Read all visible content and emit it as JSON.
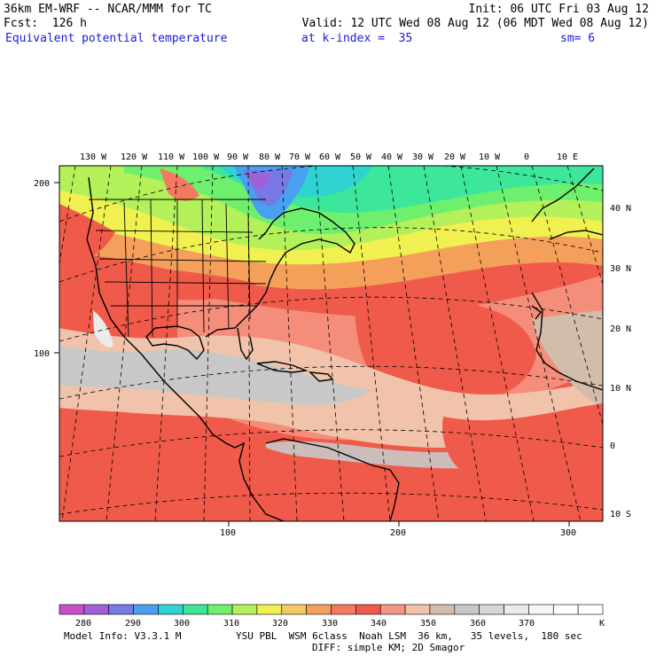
{
  "header": {
    "model": "36km EM-WRF -- NCAR/MMM for TC",
    "init": "Init: 06 UTC Fri 03 Aug 12",
    "forecast": "Fcst:  126 h",
    "valid": "Valid: 12 UTC Wed 08 Aug 12 (06 MDT Wed 08 Aug 12)",
    "field": "Equivalent potential temperature",
    "level": "at k-index =  35",
    "smoothing": "sm= 6"
  },
  "map": {
    "top_longitude_labels": [
      "130 W",
      "120 W",
      "110 W",
      "100 W",
      "90 W",
      "80 W",
      "70 W",
      "60 W",
      "50 W",
      "40 W",
      "30 W",
      "20 W",
      "10 W",
      "0",
      "10 E"
    ],
    "right_latitude_labels": [
      "40 N",
      "30 N",
      "20 N",
      "10 N",
      "0",
      "10 S"
    ],
    "left_grid_labels": [
      "200",
      "100"
    ],
    "bottom_grid_labels": [
      "100",
      "200",
      "300"
    ]
  },
  "colorbar": {
    "colors": [
      "#c84ec8",
      "#a060d8",
      "#7878e6",
      "#4aa0f0",
      "#30d2d2",
      "#3ce69a",
      "#6ef06e",
      "#b4f05a",
      "#f0f050",
      "#f5c864",
      "#f5a05a",
      "#f57860",
      "#f05a4a",
      "#f59682",
      "#f0c3aa",
      "#d2bcaa",
      "#c8c8c8",
      "#d7d7d7",
      "#ebebeb",
      "#f5f5f5",
      "#ffffff",
      "#ffffff"
    ],
    "labels": [
      "280",
      "290",
      "300",
      "310",
      "320",
      "330",
      "340",
      "350",
      "360",
      "370"
    ],
    "unit": "K"
  },
  "footer": {
    "model_info": "Model Info: V3.3.1 M",
    "physics": "YSU PBL  WSM 6class  Noah LSM  36 km,   35 levels,  180 sec",
    "diffusion": "DIFF: simple KM; 2D Smagor"
  }
}
